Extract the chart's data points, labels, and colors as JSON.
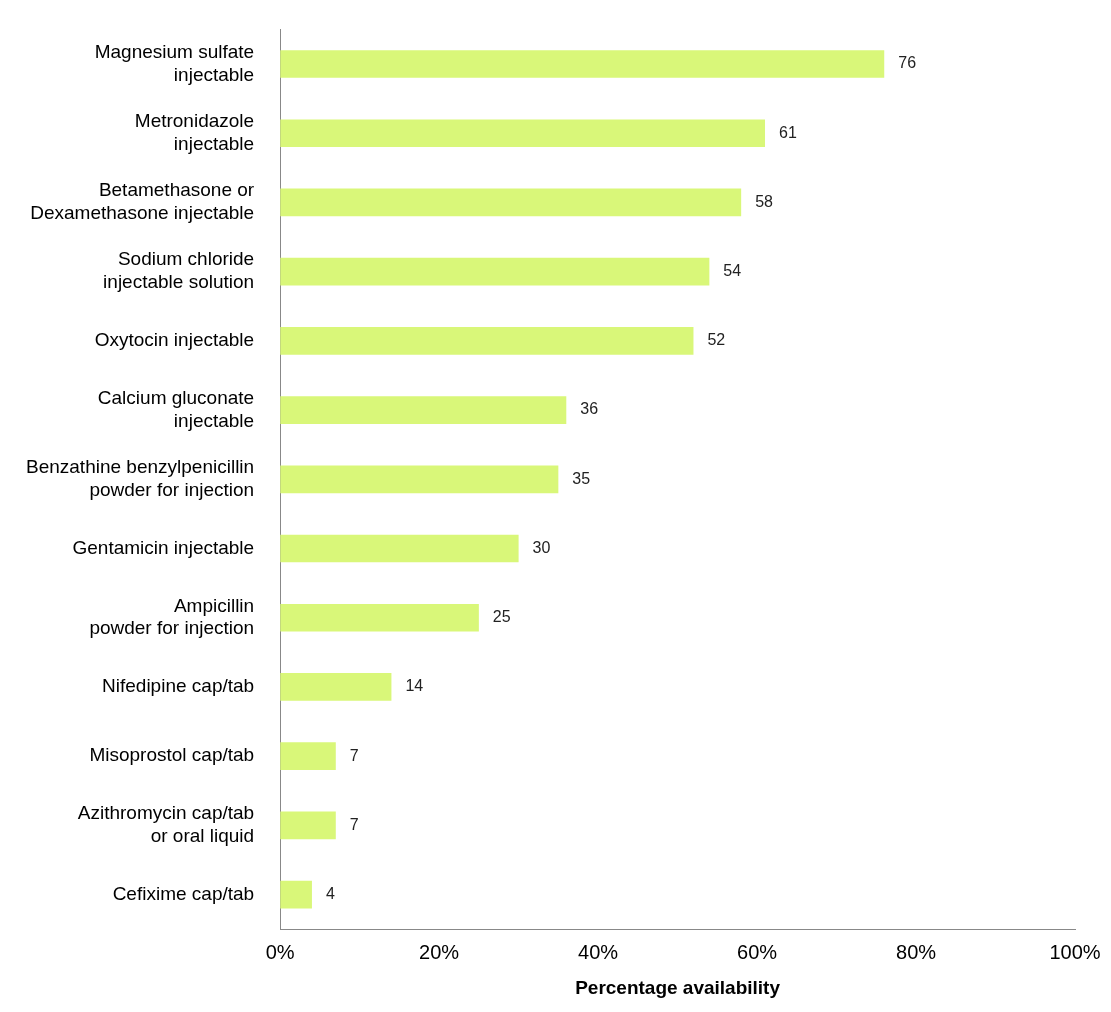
{
  "chart_data": {
    "type": "bar",
    "orientation": "horizontal",
    "xlabel": "Percentage availability",
    "categories": [
      "Magnesium sulfate\ninjectable",
      "Metronidazole\ninjectable",
      "Betamethasone or\nDexamethasone injectable",
      "Sodium chloride\ninjectable solution",
      "Oxytocin injectable",
      "Calcium gluconate\ninjectable",
      "Benzathine benzylpenicillin\npowder for injection",
      "Gentamicin injectable",
      "Ampicillin\npowder for injection",
      "Nifedipine cap/tab",
      "Misoprostol cap/tab",
      "Azithromycin cap/tab\nor oral liquid",
      "Cefixime cap/tab"
    ],
    "values": [
      76,
      61,
      58,
      54,
      52,
      36,
      35,
      30,
      25,
      14,
      7,
      7,
      4
    ],
    "color": "#d9f779",
    "xlim": [
      0,
      100
    ],
    "xticks": [
      {
        "value": 0,
        "label": "0%"
      },
      {
        "value": 20,
        "label": "20%"
      },
      {
        "value": 40,
        "label": "40%"
      },
      {
        "value": 60,
        "label": "60%"
      },
      {
        "value": 80,
        "label": "80%"
      },
      {
        "value": 100,
        "label": "100%"
      }
    ],
    "data_labels": true,
    "grid": false,
    "legend": false
  }
}
